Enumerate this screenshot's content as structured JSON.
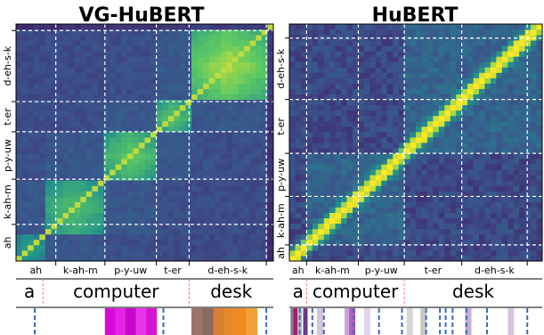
{
  "chart_data": {
    "type": "heatmap",
    "colormap": [
      "#440154",
      "#3b528b",
      "#21908d",
      "#5dc963",
      "#fde725"
    ],
    "grid": false,
    "panels": [
      {
        "title": "VG-HuBERT",
        "phone_groups": [
          "ah",
          "k-ah-m",
          "p-y-uw",
          "t-er",
          "d-eh-s-k"
        ],
        "group_bounds": [
          0,
          3.4,
          7.6,
          12.0,
          14.8,
          21.4,
          22
        ],
        "words": [
          "a",
          "computer",
          "desk"
        ],
        "word_bounds": [
          0,
          2.3,
          14.8,
          22
        ],
        "style": "block",
        "segment_bounds": [
          0,
          2.3,
          7.6,
          12.0,
          14.8,
          21.4,
          22
        ],
        "segment_values": [
          0.58,
          0.68,
          0.74,
          0.72,
          0.86,
          0.7
        ]
      },
      {
        "title": "HuBERT",
        "phone_groups": [
          "ah",
          "k-ah-m",
          "p-y-uw",
          "t-er",
          "d-eh-s-k"
        ],
        "group_bounds": [
          0,
          1.5,
          6.0,
          10.0,
          15.0,
          20.7,
          22
        ],
        "words": [
          "a",
          "computer",
          "desk"
        ],
        "word_bounds": [
          0,
          1.5,
          10.0,
          22
        ],
        "style": "diagonal"
      }
    ]
  },
  "strip_colors": {
    "panel_a": [
      "#d80ad8",
      "#e224e2",
      "#c808c8",
      "#ea33ea",
      "#d415d4",
      "#9b7468",
      "#8a6a5e",
      "#d97f33",
      "#e8892a",
      "#ef8a20",
      "#f2a23a"
    ],
    "panel_b": [
      "#8a7890",
      "#a02060",
      "#c0b8c8",
      "#6a3a8a",
      "#d3c6dc",
      "#caa6d4",
      "#b25fc2",
      "#e0d4e6",
      "#d6d6d6",
      "#c8c8c8",
      "#c9aed0",
      "#d7c2dd"
    ]
  }
}
